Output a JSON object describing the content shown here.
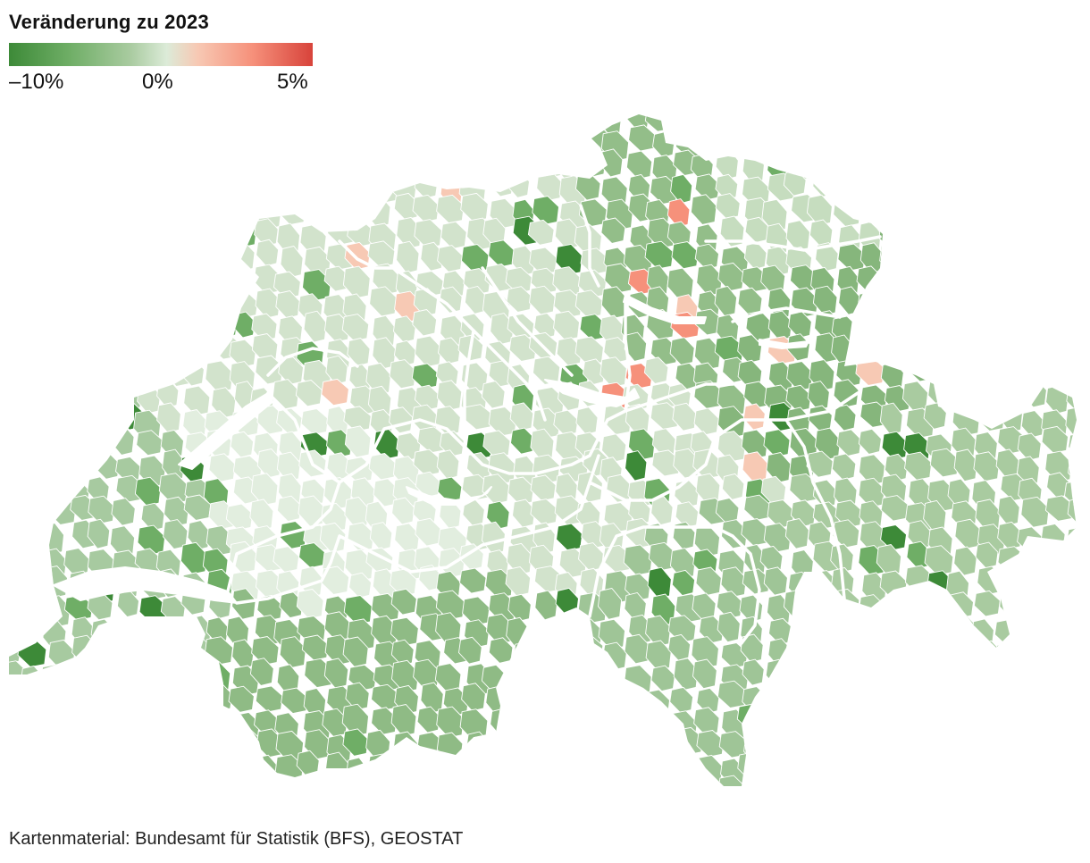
{
  "legend": {
    "title": "Veränderung zu 2023",
    "min_label": "–10%",
    "mid_label": "0%",
    "max_label": "5%",
    "scale": {
      "min_percent": -10,
      "mid_percent": 0,
      "max_percent": 5
    },
    "colors": [
      "#3d8a38",
      "#6fae66",
      "#a9cba0",
      "#dcebd8",
      "#f7c9b4",
      "#f6917b",
      "#d8433b"
    ]
  },
  "map": {
    "region": "Switzerland",
    "units": "Gemeinden",
    "border_color": "#ffffff"
  },
  "source": {
    "text": "Kartenmaterial: Bundesamt für Statistik (BFS), GEOSTAT"
  }
}
